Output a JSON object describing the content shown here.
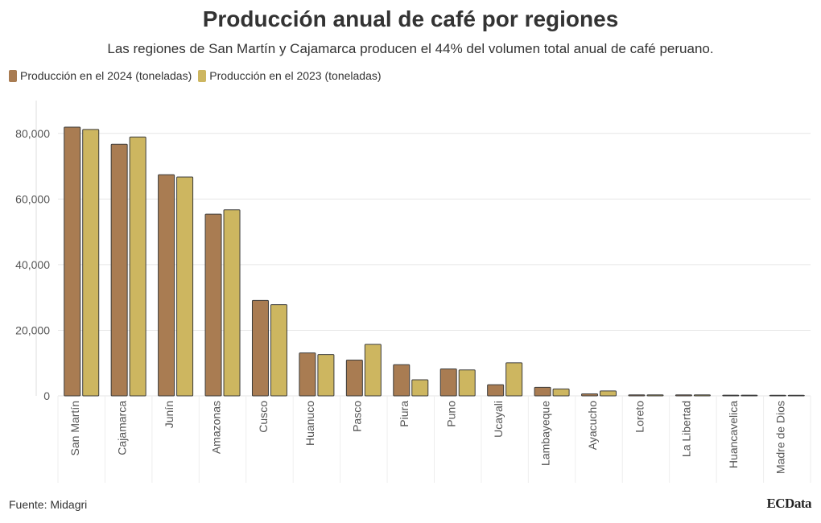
{
  "title": "Producción anual de café por regiones",
  "subtitle": "Las regiones de San Martín y Cajamarca producen el 44% del volumen total anual de café peruano.",
  "source": "Fuente: Midagri",
  "logo": "ECData",
  "colors": {
    "series_2024": "#a97c52",
    "series_2023": "#cdb660",
    "bar_stroke": "#3c3c3c",
    "grid": "#e6e6e6",
    "axis_text": "#555555"
  },
  "chart_data": {
    "type": "bar",
    "categories": [
      "San Martín",
      "Cajamarca",
      "Junín",
      "Amazonas",
      "Cusco",
      "Huanuco",
      "Pasco",
      "Piura",
      "Puno",
      "Ucayali",
      "Lambayeque",
      "Ayacucho",
      "Loreto",
      "La Libertad",
      "Huancavelica",
      "Madre de Dios"
    ],
    "series": [
      {
        "name": "Producción en el 2024 (toneladas)",
        "values": [
          81900,
          76700,
          67400,
          55400,
          29100,
          13100,
          10900,
          9500,
          8200,
          3400,
          2600,
          600,
          300,
          300,
          200,
          150
        ]
      },
      {
        "name": "Producción en el 2023 (toneladas)",
        "values": [
          81200,
          78900,
          66700,
          56700,
          27800,
          12600,
          15700,
          4900,
          7900,
          10100,
          2100,
          1500,
          300,
          300,
          200,
          150
        ]
      }
    ],
    "yticks": [
      0,
      20000,
      40000,
      60000,
      80000
    ],
    "ytick_labels": [
      "0",
      "20,000",
      "40,000",
      "60,000",
      "80,000"
    ],
    "ylim": [
      0,
      90000
    ],
    "grid": true,
    "legend_position": "top-left"
  }
}
